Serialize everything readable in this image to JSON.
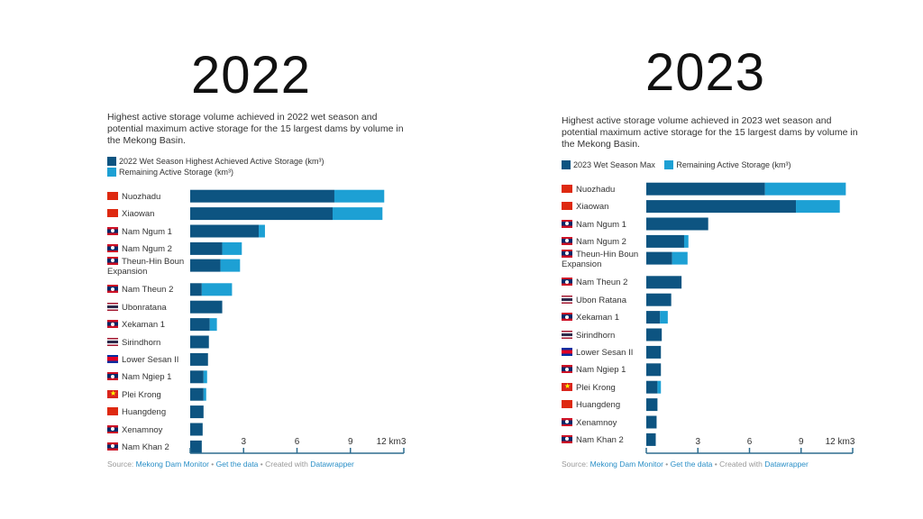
{
  "colors": {
    "achieved": "#0d5481",
    "remaining": "#1da0d4",
    "axis": "#2f6d8f"
  },
  "chart_data": [
    {
      "type": "bar",
      "stacked": true,
      "orientation": "horizontal",
      "title": "2022",
      "subtitle": "Highest active storage volume achieved in 2022 wet season and potential maximum active storage for the 15 largest dams by volume in the Mekong Basin.",
      "legend": [
        "2022 Wet Season Highest Achieved Active Storage (km³)",
        "Remaining Active Storage (km³)"
      ],
      "legend_placement": "top-left",
      "categories": [
        "Nuozhadu",
        "Xiaowan",
        "Nam Ngum 1",
        "Nam Ngum 2",
        "Theun-Hin Boun Expansion",
        "Nam Theun 2",
        "Ubonratana",
        "Xekaman 1",
        "Sirindhorn",
        "Lower Sesan II",
        "Nam Ngiep 1",
        "Plei Krong",
        "Huangdeng",
        "Xenamnoy",
        "Nam Khan 2"
      ],
      "flags": [
        "cn",
        "cn",
        "la",
        "la",
        "la",
        "la",
        "th",
        "la",
        "th",
        "kh",
        "la",
        "vn",
        "cn",
        "la",
        "la"
      ],
      "series": [
        {
          "name": "2022 Wet Season Highest Achieved Active Storage (km³)",
          "values": [
            8.1,
            8.0,
            3.85,
            1.8,
            1.7,
            0.65,
            1.8,
            1.1,
            1.05,
            1.0,
            0.75,
            0.75,
            0.75,
            0.7,
            0.65
          ]
        },
        {
          "name": "Remaining Active Storage (km³)",
          "values": [
            2.8,
            2.8,
            0.35,
            1.1,
            1.1,
            1.7,
            0,
            0.4,
            0,
            0,
            0.2,
            0.15,
            0,
            0,
            0
          ]
        }
      ],
      "xlim": [
        0,
        12
      ],
      "xticks": [
        "3",
        "6",
        "9",
        "12 km3"
      ],
      "xtick_values": [
        3,
        6,
        9,
        12
      ],
      "source": {
        "prefix": "Source: ",
        "org": "Mekong Dam Monitor",
        "sep1": " • ",
        "getdata": "Get the data",
        "sep2": " • Created with ",
        "tool": "Datawrapper"
      }
    },
    {
      "type": "bar",
      "stacked": true,
      "orientation": "horizontal",
      "title": "2023",
      "subtitle": "Highest active storage volume achieved in 2023 wet season and potential maximum active storage for the 15 largest dams by volume in the Mekong Basin.",
      "legend": [
        "2023 Wet Season Max",
        "Remaining Active Storage (km³)"
      ],
      "legend_placement": "top-left",
      "categories": [
        "Nuozhadu",
        "Xiaowan",
        "Nam Ngum 1",
        "Nam Ngum 2",
        "Theun-Hin Boun Expansion",
        "Nam Theun 2",
        "Ubon Ratana",
        "Xekaman 1",
        "Sirindhorn",
        "Lower Sesan II",
        "Nam Ngiep 1",
        "Plei Krong",
        "Huangdeng",
        "Xenamnoy",
        "Nam Khan 2"
      ],
      "flags": [
        "cn",
        "cn",
        "la",
        "la",
        "la",
        "la",
        "th",
        "la",
        "th",
        "kh",
        "la",
        "vn",
        "cn",
        "la",
        "la"
      ],
      "series": [
        {
          "name": "2023 Wet Season Max",
          "values": [
            6.9,
            8.7,
            3.6,
            2.2,
            1.5,
            2.05,
            1.45,
            0.8,
            0.9,
            0.85,
            0.85,
            0.65,
            0.65,
            0.6,
            0.55
          ]
        },
        {
          "name": "Remaining Active Storage (km³)",
          "values": [
            4.7,
            2.55,
            0,
            0.25,
            0.9,
            0,
            0,
            0.45,
            0,
            0,
            0,
            0.2,
            0,
            0,
            0
          ]
        }
      ],
      "xlim": [
        0,
        12
      ],
      "xticks": [
        "3",
        "6",
        "9",
        "12 km3"
      ],
      "xtick_values": [
        3,
        6,
        9,
        12
      ],
      "source": {
        "prefix": "Source: ",
        "org": "Mekong Dam Monitor",
        "sep1": " • ",
        "getdata": "Get the data",
        "sep2": " • Created with ",
        "tool": "Datawrapper"
      }
    }
  ]
}
